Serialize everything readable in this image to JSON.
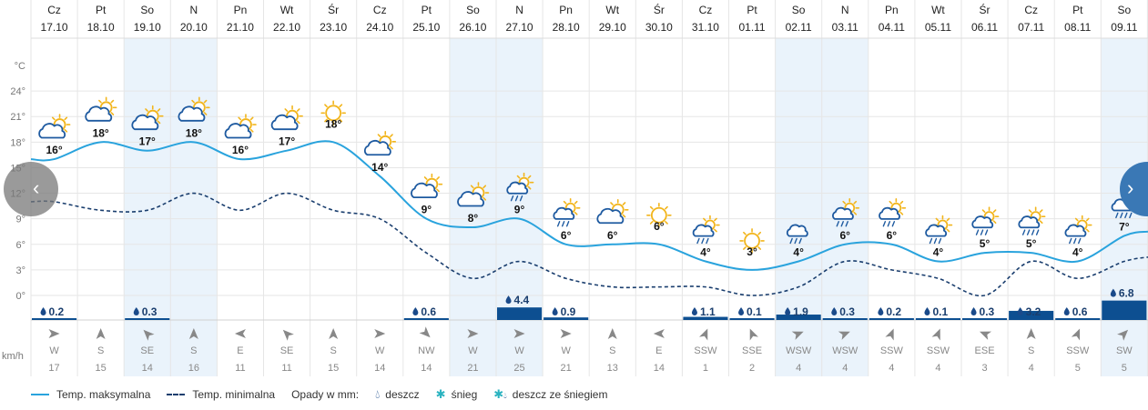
{
  "chart_data": {
    "type": "line",
    "title": "",
    "temp_unit_label": "°C",
    "y_ticks": [
      "24°",
      "21°",
      "18°",
      "15°",
      "12°",
      "9°",
      "6°",
      "3°",
      "0°"
    ],
    "ylim": [
      0,
      27
    ],
    "days": [
      {
        "dow": "Cz",
        "date": "17.10",
        "max": 16,
        "min": 11,
        "icon": "partly-cloudy",
        "precip": 0.2,
        "precip_label": "0.2",
        "wind_dir": "W",
        "wind_speed": "17",
        "weekend": false
      },
      {
        "dow": "Pt",
        "date": "18.10",
        "max": 18,
        "min": 10,
        "icon": "partly-cloudy",
        "precip": null,
        "precip_label": "",
        "wind_dir": "S",
        "wind_speed": "15",
        "weekend": false
      },
      {
        "dow": "So",
        "date": "19.10",
        "max": 17,
        "min": 10,
        "icon": "partly-cloudy",
        "precip": 0.3,
        "precip_label": "0.3",
        "wind_dir": "SE",
        "wind_speed": "14",
        "weekend": true
      },
      {
        "dow": "N",
        "date": "20.10",
        "max": 18,
        "min": 12,
        "icon": "partly-cloudy",
        "precip": null,
        "precip_label": "",
        "wind_dir": "S",
        "wind_speed": "16",
        "weekend": true
      },
      {
        "dow": "Pn",
        "date": "21.10",
        "max": 16,
        "min": 10,
        "icon": "partly-cloudy",
        "precip": null,
        "precip_label": "",
        "wind_dir": "E",
        "wind_speed": "11",
        "weekend": false
      },
      {
        "dow": "Wt",
        "date": "22.10",
        "max": 17,
        "min": 12,
        "icon": "partly-cloudy",
        "precip": null,
        "precip_label": "",
        "wind_dir": "SE",
        "wind_speed": "11",
        "weekend": false
      },
      {
        "dow": "Śr",
        "date": "23.10",
        "max": 18,
        "min": 10,
        "icon": "sunny",
        "precip": null,
        "precip_label": "",
        "wind_dir": "S",
        "wind_speed": "15",
        "weekend": false
      },
      {
        "dow": "Cz",
        "date": "24.10",
        "max": 14,
        "min": 9,
        "icon": "partly-cloudy",
        "precip": null,
        "precip_label": "",
        "wind_dir": "W",
        "wind_speed": "14",
        "weekend": false
      },
      {
        "dow": "Pt",
        "date": "25.10",
        "max": 9,
        "min": 5,
        "icon": "partly-cloudy",
        "precip": 0.6,
        "precip_label": "0.6",
        "wind_dir": "NW",
        "wind_speed": "14",
        "weekend": false
      },
      {
        "dow": "So",
        "date": "26.10",
        "max": 8,
        "min": 2,
        "icon": "partly-cloudy",
        "precip": null,
        "precip_label": "",
        "wind_dir": "W",
        "wind_speed": "21",
        "weekend": true
      },
      {
        "dow": "N",
        "date": "27.10",
        "max": 9,
        "min": 4,
        "icon": "rain-sun",
        "precip": 4.4,
        "precip_label": "4.4",
        "wind_dir": "W",
        "wind_speed": "25",
        "weekend": true
      },
      {
        "dow": "Pn",
        "date": "28.10",
        "max": 6,
        "min": 2,
        "icon": "rain-sun",
        "precip": 0.9,
        "precip_label": "0.9",
        "wind_dir": "W",
        "wind_speed": "21",
        "weekend": false
      },
      {
        "dow": "Wt",
        "date": "29.10",
        "max": 6,
        "min": 1,
        "icon": "partly-cloudy",
        "precip": null,
        "precip_label": "",
        "wind_dir": "S",
        "wind_speed": "13",
        "weekend": false
      },
      {
        "dow": "Śr",
        "date": "30.10",
        "max": 6,
        "min": 1,
        "icon": "sunny",
        "precip": null,
        "precip_label": "",
        "wind_dir": "E",
        "wind_speed": "14",
        "weekend": false
      },
      {
        "dow": "Cz",
        "date": "31.10",
        "max": 4,
        "min": 1,
        "icon": "rain-sun",
        "precip": 1.1,
        "precip_label": "1.1",
        "wind_dir": "SSW",
        "wind_speed": "1",
        "weekend": false
      },
      {
        "dow": "Pt",
        "date": "01.11",
        "max": 3,
        "min": 0,
        "icon": "sunny",
        "precip": 0.1,
        "precip_label": "0.1",
        "wind_dir": "SSE",
        "wind_speed": "2",
        "weekend": false
      },
      {
        "dow": "So",
        "date": "02.11",
        "max": 4,
        "min": 1,
        "icon": "rain-cloud",
        "precip": 1.9,
        "precip_label": "1.9",
        "wind_dir": "WSW",
        "wind_speed": "4",
        "weekend": true
      },
      {
        "dow": "N",
        "date": "03.11",
        "max": 6,
        "min": 4,
        "icon": "rain-sun",
        "precip": 0.3,
        "precip_label": "0.3",
        "wind_dir": "WSW",
        "wind_speed": "4",
        "weekend": true
      },
      {
        "dow": "Pn",
        "date": "04.11",
        "max": 6,
        "min": 3,
        "icon": "rain-sun",
        "precip": 0.2,
        "precip_label": "0.2",
        "wind_dir": "SSW",
        "wind_speed": "4",
        "weekend": false
      },
      {
        "dow": "Wt",
        "date": "05.11",
        "max": 4,
        "min": 2,
        "icon": "rain-sun",
        "precip": 0.1,
        "precip_label": "0.1",
        "wind_dir": "SSW",
        "wind_speed": "4",
        "weekend": false
      },
      {
        "dow": "Śr",
        "date": "06.11",
        "max": 5,
        "min": 0,
        "icon": "rain-sun",
        "precip": 0.3,
        "precip_label": "0.3",
        "wind_dir": "ESE",
        "wind_speed": "3",
        "weekend": false
      },
      {
        "dow": "Cz",
        "date": "07.11",
        "max": 5,
        "min": 4,
        "icon": "heavy-rain-sun",
        "precip": 3.2,
        "precip_label": "3.2",
        "wind_dir": "S",
        "wind_speed": "4",
        "weekend": false
      },
      {
        "dow": "Pt",
        "date": "08.11",
        "max": 4,
        "min": 2,
        "icon": "rain-sun",
        "precip": 0.6,
        "precip_label": "0.6",
        "wind_dir": "SSW",
        "wind_speed": "5",
        "weekend": false
      },
      {
        "dow": "So",
        "date": "09.11",
        "max": 7,
        "min": 4,
        "icon": "heavy-rain-sun",
        "precip": 6.8,
        "precip_label": "6.8",
        "wind_dir": "SW",
        "wind_speed": "5",
        "weekend": true
      }
    ],
    "wind_unit_label": "km/h",
    "precip_scale_max": 7,
    "colors": {
      "max_line": "#29a3dd",
      "min_line": "#1a3e6e",
      "precip_bar": "#0d4f91",
      "weekend_bg": "#eaf3fb",
      "grid": "#e6e6e6",
      "sun": "#f2b51c",
      "cloud": "#1e5aa0"
    }
  },
  "legend": {
    "max_label": "Temp. maksymalna",
    "min_label": "Temp. minimalna",
    "precip_title": "Opady w mm:",
    "rain_label": "deszcz",
    "snow_label": "śnieg",
    "mix_label": "deszcz ze śniegiem",
    "rain_icon": "raindrop-icon",
    "snow_icon": "snowflake-icon",
    "mix_icon": "rain-snow-icon"
  },
  "nav": {
    "prev_symbol": "‹",
    "next_symbol": "›"
  }
}
